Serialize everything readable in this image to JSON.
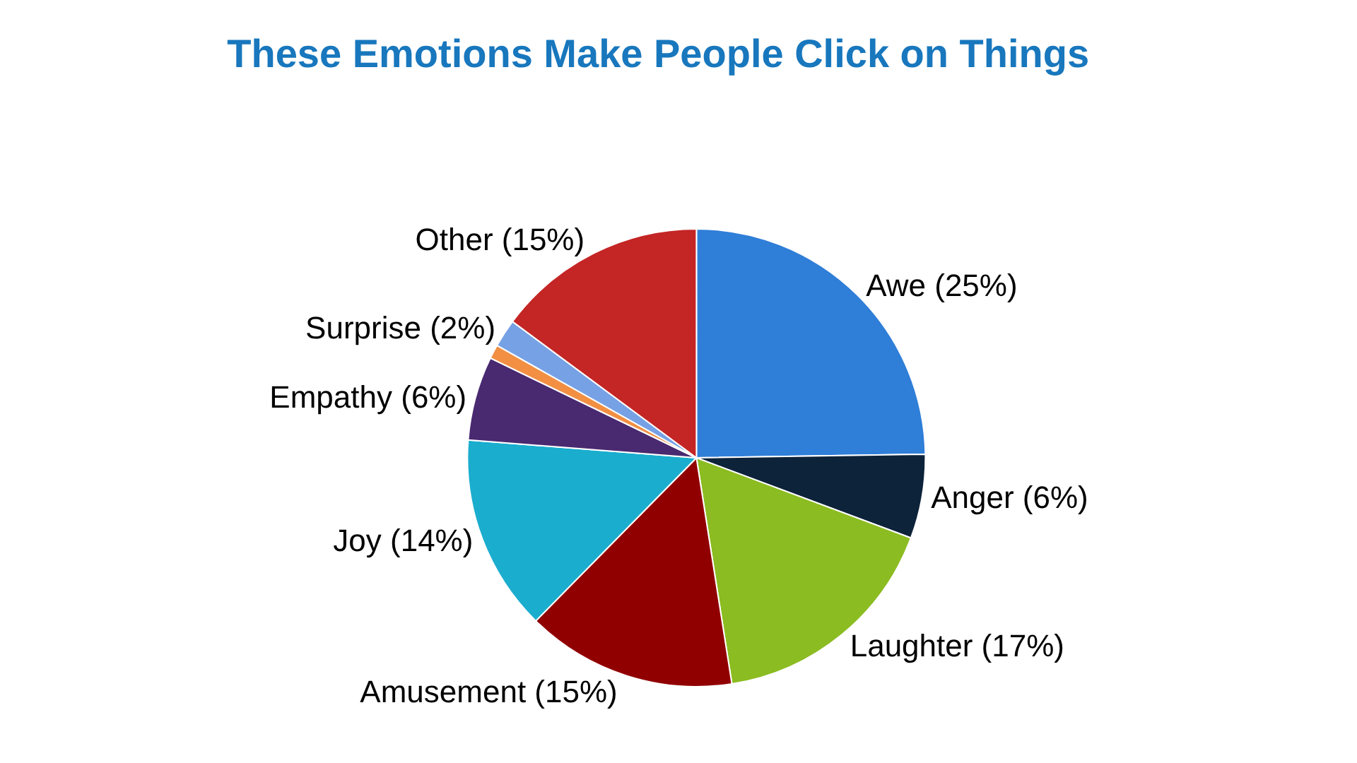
{
  "chart_data": {
    "type": "pie",
    "title": "These Emotions Make People Click on Things",
    "categories": [
      "Awe (25%)",
      "Anger (6%)",
      "Laughter (17%)",
      "Amusement (15%)",
      "Joy (14%)",
      "Empathy (6%)",
      null,
      "Surprise (2%)",
      "Other (15%)"
    ],
    "values": [
      25,
      6,
      17,
      15,
      14,
      6,
      1,
      2,
      15
    ],
    "colors": [
      "#2f7ed8",
      "#0d233a",
      "#8bbc21",
      "#910000",
      "#1aadce",
      "#492970",
      "#f28f43",
      "#77a1e5",
      "#c42525"
    ],
    "legend": false
  }
}
